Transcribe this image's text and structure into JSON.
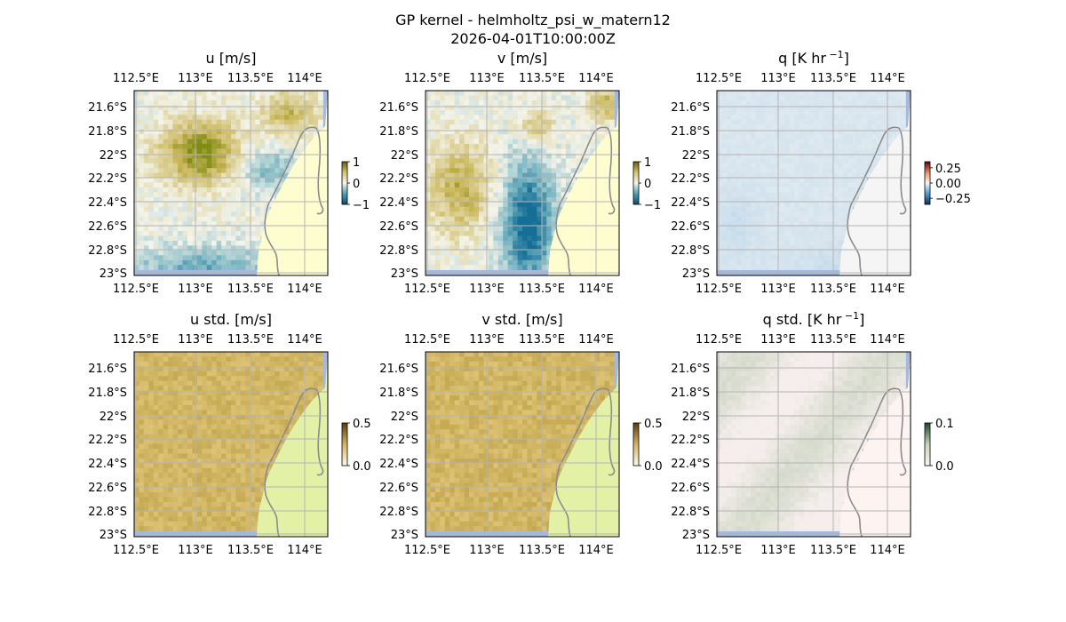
{
  "figure": {
    "title_line1": "GP kernel - helmholtz_psi_w_matern12",
    "title_line2": "2026-04-01T10:00:00Z"
  },
  "axes": {
    "lon_ticks": [
      "112.5°E",
      "113°E",
      "113.5°E",
      "114°E"
    ],
    "lat_ticks": [
      "21.6°S",
      "21.8°S",
      "22°S",
      "22.2°S",
      "22.4°S",
      "22.6°S",
      "22.8°S",
      "23°S"
    ]
  },
  "colors": {
    "ocean_background": "#a3b9e0",
    "land_plain": "#fefdd0",
    "land_std": "#e3f1a6",
    "land_q": "#f5f5f5",
    "land_q_std": "#fdf4f2",
    "coastline": "#8c8c8c",
    "gridline": "#b4b4b4"
  },
  "chart_data": [
    {
      "type": "heatmap",
      "title": "u [m/s]",
      "colormap": "diverging brown-olive to teal",
      "colorbar": {
        "ticks": [
          "1",
          "0",
          "−1"
        ],
        "range": [
          -1,
          1
        ]
      }
    },
    {
      "type": "heatmap",
      "title": "v [m/s]",
      "colormap": "diverging brown-olive to teal",
      "colorbar": {
        "ticks": [
          "1",
          "0",
          "−1"
        ],
        "range": [
          -1,
          1
        ]
      }
    },
    {
      "type": "heatmap",
      "title": "q [K hr",
      "title_sup": "−1",
      "title_end": "]",
      "colormap": "diverging red-blue",
      "colorbar": {
        "ticks": [
          "0.25",
          "0.00",
          "−0.25"
        ],
        "range": [
          -0.35,
          0.35
        ]
      }
    },
    {
      "type": "heatmap",
      "title": "u std. [m/s]",
      "colormap": "sequential brown",
      "colorbar": {
        "ticks": [
          "0.5",
          "0.0"
        ],
        "range": [
          0,
          0.5
        ]
      }
    },
    {
      "type": "heatmap",
      "title": "v std. [m/s]",
      "colormap": "sequential brown",
      "colorbar": {
        "ticks": [
          "0.5",
          "0.0"
        ],
        "range": [
          0,
          0.5
        ]
      }
    },
    {
      "type": "heatmap",
      "title": "q std. [K hr",
      "title_sup": "−1",
      "title_end": "]",
      "colormap": "sequential pale pink-green",
      "colorbar": {
        "ticks": [
          "0.1",
          "0.0"
        ],
        "range": [
          0,
          0.1
        ]
      }
    }
  ]
}
